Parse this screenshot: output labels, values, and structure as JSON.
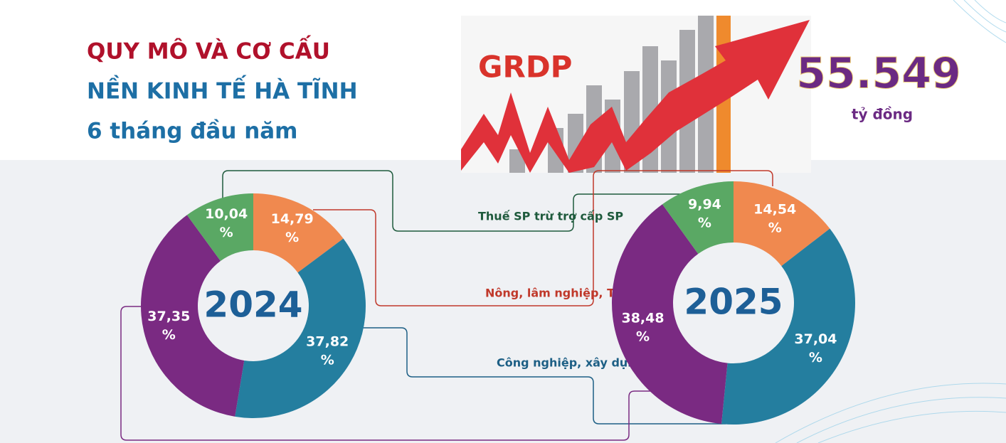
{
  "header": {
    "title": [
      "QUY MÔ VÀ CƠ CẤU",
      "NỀN KINH TẾ HÀ TĨNH",
      "6 tháng đầu năm"
    ],
    "image_label": "GRDP",
    "total": "55.549",
    "unit": "tỷ đồng"
  },
  "chart_data": [
    {
      "type": "donut",
      "title": "2024",
      "categories": [
        "Nông, lâm nghiệp, TS",
        "Công nghiệp, xây dựng",
        null,
        "Thuế SP trừ trợ cấp SP"
      ],
      "colors": [
        "#f0894f",
        "#247e9f",
        "#7a2a82",
        "#5aa864"
      ],
      "values": [
        14.79,
        37.82,
        37.35,
        10.04
      ],
      "value_labels": [
        "14,79 %",
        "37,82 %",
        "37,35 %",
        "10,04 %"
      ]
    },
    {
      "type": "donut",
      "title": "2025",
      "colors": [
        "#f0894f",
        "#247e9f",
        "#7a2a82",
        "#5aa864"
      ],
      "values": [
        14.54,
        37.04,
        38.48,
        9.94
      ],
      "value_labels": [
        "14,54 %",
        "37,04 %",
        "38,48 %",
        "9,94 %"
      ]
    }
  ]
}
